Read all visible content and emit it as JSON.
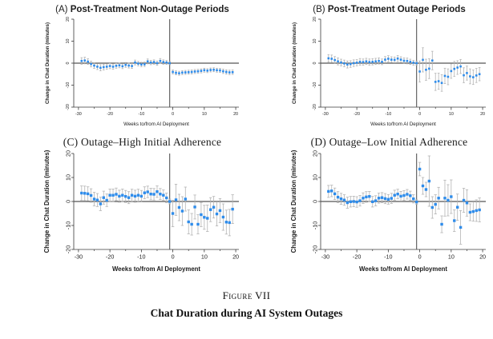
{
  "figure": {
    "caption_label": "Figure VII",
    "caption_title": "Chat Duration during AI System Outages"
  },
  "colors": {
    "point": "#2e8ceb",
    "error_bar": "#b4b4b4",
    "axis": "#3a3a3a",
    "ref_line": "#565656",
    "text": "#1c1c1c"
  },
  "chart_data": [
    {
      "type": "scatter",
      "panel": "A",
      "title_prefix": "(A)",
      "title": "Post-Treatment Non-Outage Periods",
      "xlabel": "Weeks to/from AI Deployment",
      "ylabel": "Change in Chat Duration (minutes)",
      "xlim": [
        -31.5,
        21
      ],
      "ylim": [
        -20,
        20
      ],
      "xticks": [
        -30,
        -20,
        -10,
        0,
        10,
        20
      ],
      "xticks_minor": [
        -25,
        -15,
        -5,
        5,
        15
      ],
      "yticks": [
        -20,
        -10,
        0,
        10,
        20
      ],
      "hline_y": 0,
      "vline_x": -1,
      "x": [
        -29,
        -28,
        -27,
        -26,
        -25,
        -24,
        -23,
        -22,
        -21,
        -20,
        -19,
        -18,
        -17,
        -16,
        -15,
        -14,
        -13,
        -12,
        -11,
        -10,
        -9,
        -8,
        -7,
        -6,
        -5,
        -4,
        -3,
        -2,
        -1,
        0,
        1,
        2,
        3,
        4,
        5,
        6,
        7,
        8,
        9,
        10,
        11,
        12,
        13,
        14,
        15,
        16,
        17,
        18,
        19
      ],
      "y": [
        1.0,
        1.2,
        0.7,
        -0.4,
        -1.1,
        -1.6,
        -2.1,
        -1.8,
        -1.6,
        -1.3,
        -1.6,
        -1.2,
        -1.0,
        -1.4,
        -0.8,
        -1.1,
        -1.3,
        0.3,
        -0.2,
        -0.6,
        -0.5,
        0.8,
        0.3,
        0.5,
        0.0,
        1.0,
        0.5,
        0.3,
        0.0,
        -4.0,
        -4.4,
        -4.6,
        -4.3,
        -4.2,
        -4.1,
        -4.0,
        -3.8,
        -3.7,
        -3.5,
        -3.2,
        -3.4,
        -3.1,
        -3.0,
        -3.2,
        -3.3,
        -3.7,
        -4.0,
        -4.2,
        -4.1
      ],
      "ci": [
        1.5,
        1.5,
        1.3,
        1.3,
        1.3,
        1.3,
        1.4,
        1.3,
        1.2,
        1.2,
        1.2,
        1.1,
        1.1,
        1.1,
        1.1,
        1.1,
        1.1,
        1.1,
        1.0,
        1.0,
        1.0,
        1.1,
        1.0,
        1.0,
        1.0,
        1.1,
        1.0,
        0.9,
        0.7,
        0.9,
        0.9,
        0.9,
        0.9,
        0.9,
        0.9,
        0.9,
        0.9,
        0.9,
        0.9,
        0.9,
        0.9,
        0.9,
        0.9,
        0.9,
        0.9,
        1.0,
        1.0,
        1.0,
        1.0
      ]
    },
    {
      "type": "scatter",
      "panel": "B",
      "title_prefix": "(B)",
      "title": "Post-Treatment Outage Periods",
      "xlabel": "Weeks to/from AI Deployment",
      "ylabel": "Change in Chat Duration (minutes)",
      "xlim": [
        -31.5,
        21
      ],
      "ylim": [
        -20,
        20
      ],
      "xticks": [
        -30,
        -20,
        -10,
        0,
        10,
        20
      ],
      "xticks_minor": [
        -25,
        -15,
        -5,
        5,
        15
      ],
      "yticks": [
        -20,
        -10,
        0,
        10,
        20
      ],
      "hline_y": 0,
      "vline_x": -1,
      "x": [
        -29,
        -28,
        -27,
        -26,
        -25,
        -24,
        -23,
        -22,
        -21,
        -20,
        -19,
        -18,
        -17,
        -16,
        -15,
        -14,
        -13,
        -12,
        -11,
        -10,
        -9,
        -8,
        -7,
        -6,
        -5,
        -4,
        -3,
        -2,
        -1,
        0,
        1,
        2,
        3,
        4,
        5,
        6,
        7,
        8,
        9,
        10,
        11,
        12,
        13,
        14,
        15,
        16,
        17,
        18,
        19
      ],
      "y": [
        2.2,
        2.0,
        1.4,
        0.8,
        0.3,
        -0.1,
        -0.6,
        -0.4,
        0.0,
        0.2,
        0.6,
        0.5,
        0.8,
        0.5,
        0.6,
        0.8,
        1.0,
        0.6,
        1.6,
        2.0,
        1.6,
        1.5,
        2.1,
        1.6,
        1.1,
        1.0,
        0.6,
        0.2,
        0.0,
        -3.8,
        1.5,
        -3.0,
        -2.5,
        1.2,
        -8.5,
        -8.2,
        -9.0,
        -5.8,
        -6.2,
        -3.6,
        -2.6,
        -2.0,
        -1.5,
        -5.5,
        -4.5,
        -6.0,
        -6.4,
        -5.6,
        -5.0
      ],
      "ci": [
        1.7,
        1.7,
        1.6,
        1.6,
        1.5,
        1.5,
        1.6,
        1.5,
        1.5,
        1.4,
        1.5,
        1.4,
        1.4,
        1.4,
        1.4,
        1.4,
        1.4,
        1.3,
        1.4,
        1.4,
        1.3,
        1.3,
        1.4,
        1.3,
        1.3,
        1.3,
        1.2,
        1.1,
        0.9,
        4.8,
        5.5,
        4.8,
        4.5,
        4.2,
        3.9,
        3.7,
        3.8,
        3.5,
        3.6,
        3.3,
        3.4,
        3.1,
        3.2,
        3.4,
        3.2,
        3.4,
        3.3,
        3.2,
        3.0
      ]
    },
    {
      "type": "scatter",
      "panel": "C",
      "title_prefix": "(C)",
      "title": "Outage–High Initial Adherence",
      "xlabel": "Weeks to/from AI Deployment",
      "ylabel": "Change in Chat Duration (minutes)",
      "xlim": [
        -31.5,
        21
      ],
      "ylim": [
        -20,
        20
      ],
      "xticks": [
        -30,
        -20,
        -10,
        0,
        10,
        20
      ],
      "xticks_minor": [
        -25,
        -15,
        -5,
        5,
        15
      ],
      "yticks": [
        -20,
        -10,
        0,
        10,
        20
      ],
      "hline_y": 0,
      "vline_x": -1,
      "x": [
        -29,
        -28,
        -27,
        -26,
        -25,
        -24,
        -23,
        -22,
        -21,
        -20,
        -19,
        -18,
        -17,
        -16,
        -15,
        -14,
        -13,
        -12,
        -11,
        -10,
        -9,
        -8,
        -7,
        -6,
        -5,
        -4,
        -3,
        -2,
        -1,
        0,
        1,
        2,
        3,
        4,
        5,
        6,
        7,
        8,
        9,
        10,
        11,
        12,
        13,
        14,
        15,
        16,
        17,
        18,
        19
      ],
      "y": [
        3.5,
        3.4,
        3.2,
        2.5,
        1.0,
        0.6,
        -1.0,
        1.6,
        0.5,
        2.6,
        2.6,
        3.0,
        2.2,
        2.6,
        2.1,
        1.6,
        2.6,
        2.2,
        2.6,
        2.2,
        3.6,
        4.0,
        3.1,
        3.0,
        4.1,
        3.1,
        2.6,
        1.5,
        0.0,
        -5.0,
        0.7,
        -2.5,
        -4.0,
        1.0,
        -8.5,
        -9.5,
        -2.3,
        -9.5,
        -5.5,
        -6.6,
        -7.0,
        -3.4,
        -2.4,
        -5.2,
        -3.8,
        -6.5,
        -8.6,
        -8.8,
        -3.2
      ],
      "ci": [
        3.0,
        3.0,
        2.9,
        2.8,
        2.8,
        2.7,
        2.8,
        2.7,
        2.6,
        2.6,
        2.6,
        2.6,
        2.5,
        2.6,
        2.5,
        2.5,
        2.5,
        2.5,
        2.5,
        2.4,
        2.5,
        2.4,
        2.4,
        2.4,
        2.4,
        2.3,
        2.2,
        2.0,
        1.0,
        5.5,
        6.5,
        5.5,
        6.0,
        5.0,
        5.0,
        4.5,
        5.0,
        4.0,
        5.0,
        5.0,
        5.5,
        5.0,
        4.5,
        5.0,
        5.0,
        5.5,
        5.0,
        5.5,
        6.0
      ]
    },
    {
      "type": "scatter",
      "panel": "D",
      "title_prefix": "(D)",
      "title": "Outage–Low Initial Adherence",
      "xlabel": "Weeks to/from AI Deployment",
      "ylabel": "Change in Chat Duration (minutes)",
      "xlim": [
        -31.5,
        21
      ],
      "ylim": [
        -20,
        20
      ],
      "xticks": [
        -30,
        -20,
        -10,
        0,
        10,
        20
      ],
      "xticks_minor": [
        -25,
        -15,
        -5,
        5,
        15
      ],
      "yticks": [
        -20,
        -10,
        0,
        10,
        20
      ],
      "hline_y": 0,
      "vline_x": -1,
      "x": [
        -29,
        -28,
        -27,
        -26,
        -25,
        -24,
        -23,
        -22,
        -21,
        -20,
        -19,
        -18,
        -17,
        -16,
        -15,
        -14,
        -13,
        -12,
        -11,
        -10,
        -9,
        -8,
        -7,
        -6,
        -5,
        -4,
        -3,
        -2,
        -1,
        0,
        1,
        2,
        3,
        4,
        5,
        6,
        7,
        8,
        9,
        10,
        11,
        12,
        13,
        14,
        15,
        16,
        17,
        18,
        19
      ],
      "y": [
        4.2,
        4.4,
        3.2,
        1.8,
        1.1,
        0.6,
        -0.5,
        -0.1,
        0.0,
        -0.2,
        0.3,
        1.4,
        1.9,
        2.1,
        -0.1,
        0.3,
        1.4,
        1.6,
        1.2,
        0.9,
        1.3,
        2.6,
        3.1,
        2.2,
        2.5,
        3.0,
        2.4,
        1.1,
        -0.2,
        13.5,
        6.5,
        5.0,
        8.5,
        -2.5,
        -1.2,
        1.4,
        -9.5,
        1.4,
        0.5,
        2.0,
        -8.0,
        -2.4,
        -10.8,
        0.5,
        -0.6,
        -4.5,
        -4.2,
        -3.8,
        -3.5
      ],
      "ci": [
        2.5,
        2.4,
        2.4,
        2.3,
        2.3,
        2.2,
        2.3,
        2.2,
        2.2,
        2.2,
        2.2,
        2.2,
        2.2,
        2.1,
        2.2,
        2.1,
        2.1,
        2.1,
        2.1,
        2.0,
        2.1,
        2.1,
        2.0,
        2.0,
        2.0,
        2.0,
        1.9,
        1.7,
        0.9,
        2.8,
        3.5,
        3.0,
        10.5,
        4.5,
        4.0,
        4.5,
        3.5,
        7.5,
        6.5,
        7.0,
        4.5,
        5.5,
        7.0,
        5.0,
        5.5,
        3.5,
        4.0,
        4.5,
        5.0
      ]
    }
  ]
}
